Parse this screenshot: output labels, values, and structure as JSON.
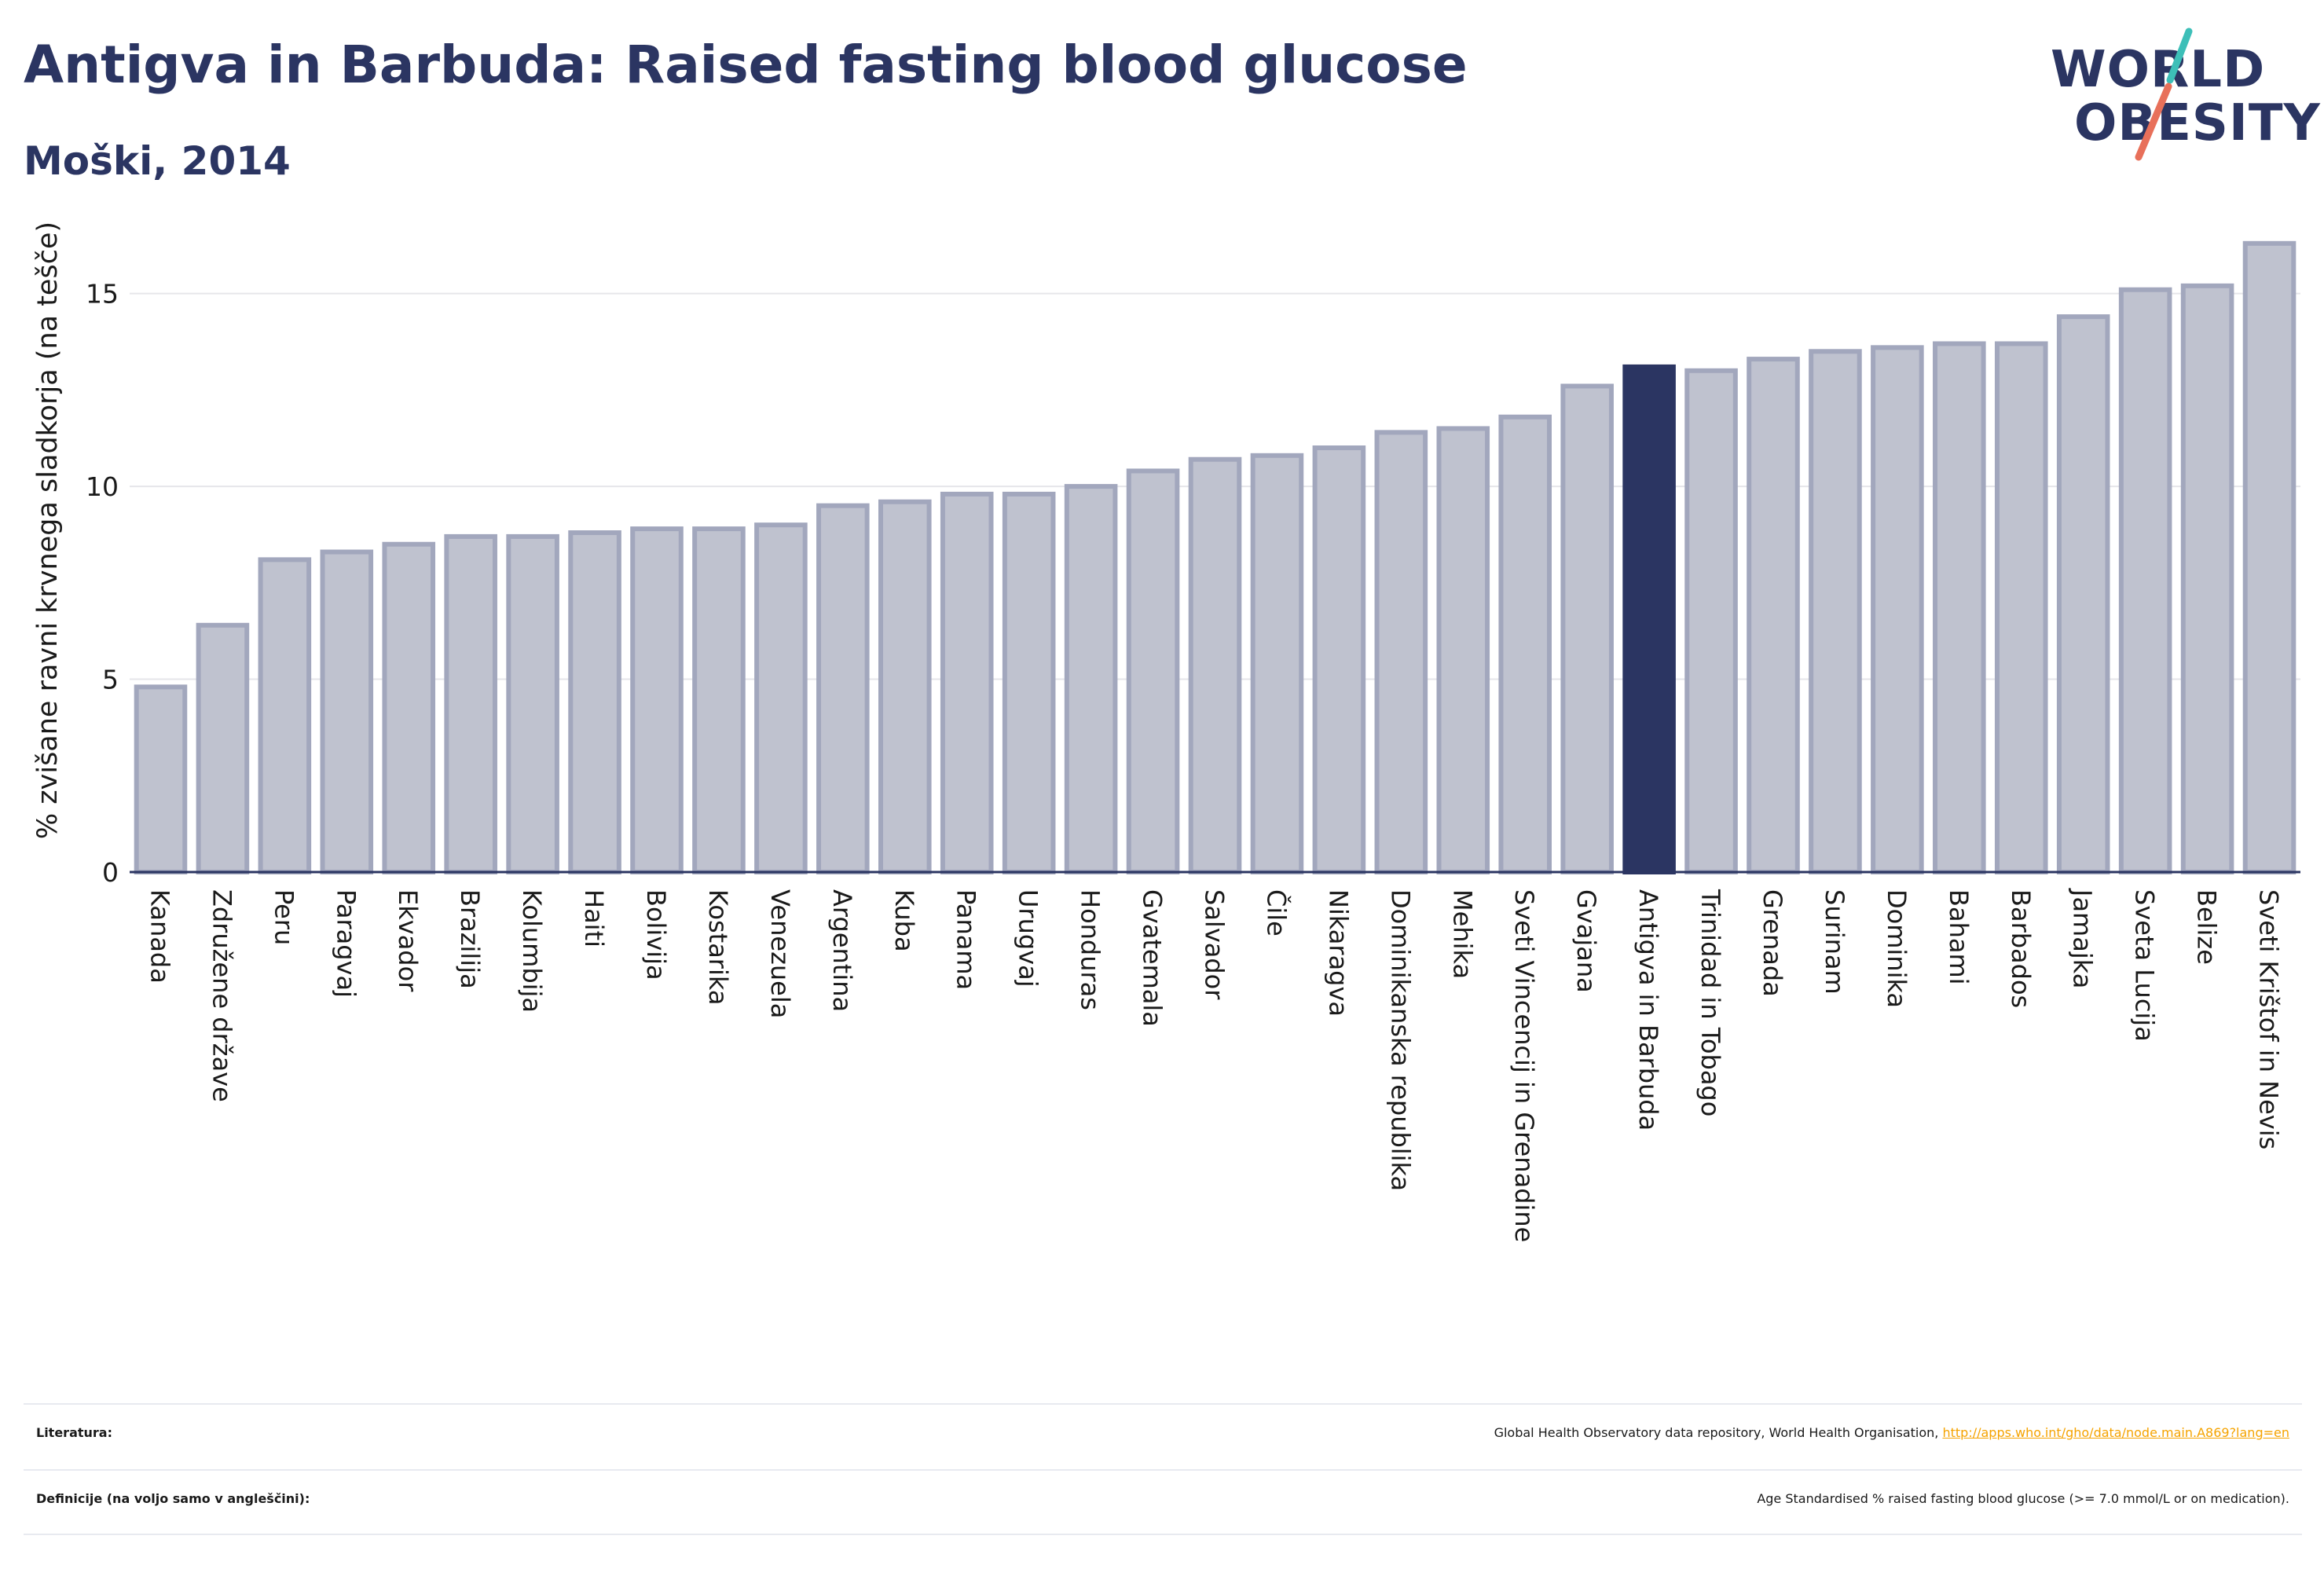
{
  "header": {
    "title": "Antigva in Barbuda: Raised fasting blood glucose",
    "subtitle": "Moški, 2014"
  },
  "logo": {
    "line1": "WORLD",
    "line2": "OBESITY",
    "slash_colors": [
      "#3dbfb8",
      "#e8705a"
    ]
  },
  "colors": {
    "highlight": "#2b3562",
    "bar_fill": "#bfc2cf",
    "bar_stroke": "#a2a7bd",
    "grid": "#e6e6ea",
    "axis": "#2b3562",
    "link": "#f5a300"
  },
  "chart_data": {
    "type": "bar",
    "title": "Antigva in Barbuda: Raised fasting blood glucose",
    "ylabel": "% zvišane ravni krvnega sladkorja (na tešče)",
    "xlabel": "",
    "ylim": [
      0,
      16.5
    ],
    "yticks": [
      0,
      5,
      10,
      15
    ],
    "grid": true,
    "highlight_category": "Antigva in Barbuda",
    "categories": [
      "Kanada",
      "Združene države",
      "Peru",
      "Paragvaj",
      "Ekvador",
      "Brazilija",
      "Kolumbija",
      "Haiti",
      "Bolivija",
      "Kostarika",
      "Venezuela",
      "Argentina",
      "Kuba",
      "Panama",
      "Urugvaj",
      "Honduras",
      "Gvatemala",
      "Salvador",
      "Čile",
      "Nikaragva",
      "Dominikanska republika",
      "Mehika",
      "Sveti Vincencij in Grenadine",
      "Gvajana",
      "Antigva in Barbuda",
      "Trinidad in Tobago",
      "Grenada",
      "Surinam",
      "Dominika",
      "Bahami",
      "Barbados",
      "Jamajka",
      "Sveta Lucija",
      "Belize",
      "Sveti Krištof in Nevis"
    ],
    "values": [
      4.8,
      6.4,
      8.1,
      8.3,
      8.5,
      8.7,
      8.7,
      8.8,
      8.9,
      8.9,
      9.0,
      9.5,
      9.6,
      9.8,
      9.8,
      10.0,
      10.4,
      10.7,
      10.8,
      11.0,
      11.4,
      11.5,
      11.8,
      12.6,
      13.1,
      13.0,
      13.3,
      13.5,
      13.6,
      13.7,
      13.7,
      14.4,
      15.1,
      15.2,
      16.3
    ]
  },
  "footer": {
    "references_label": "Literatura:",
    "references_text": "Global Health Observatory data repository, World Health Organisation,",
    "references_link": "http://apps.who.int/gho/data/node.main.A869?lang=en",
    "definitions_label": "Definicije (na voljo samo v angleščini):",
    "definitions_text": "Age Standardised % raised fasting blood glucose (>= 7.0 mmol/L or on medication)."
  }
}
